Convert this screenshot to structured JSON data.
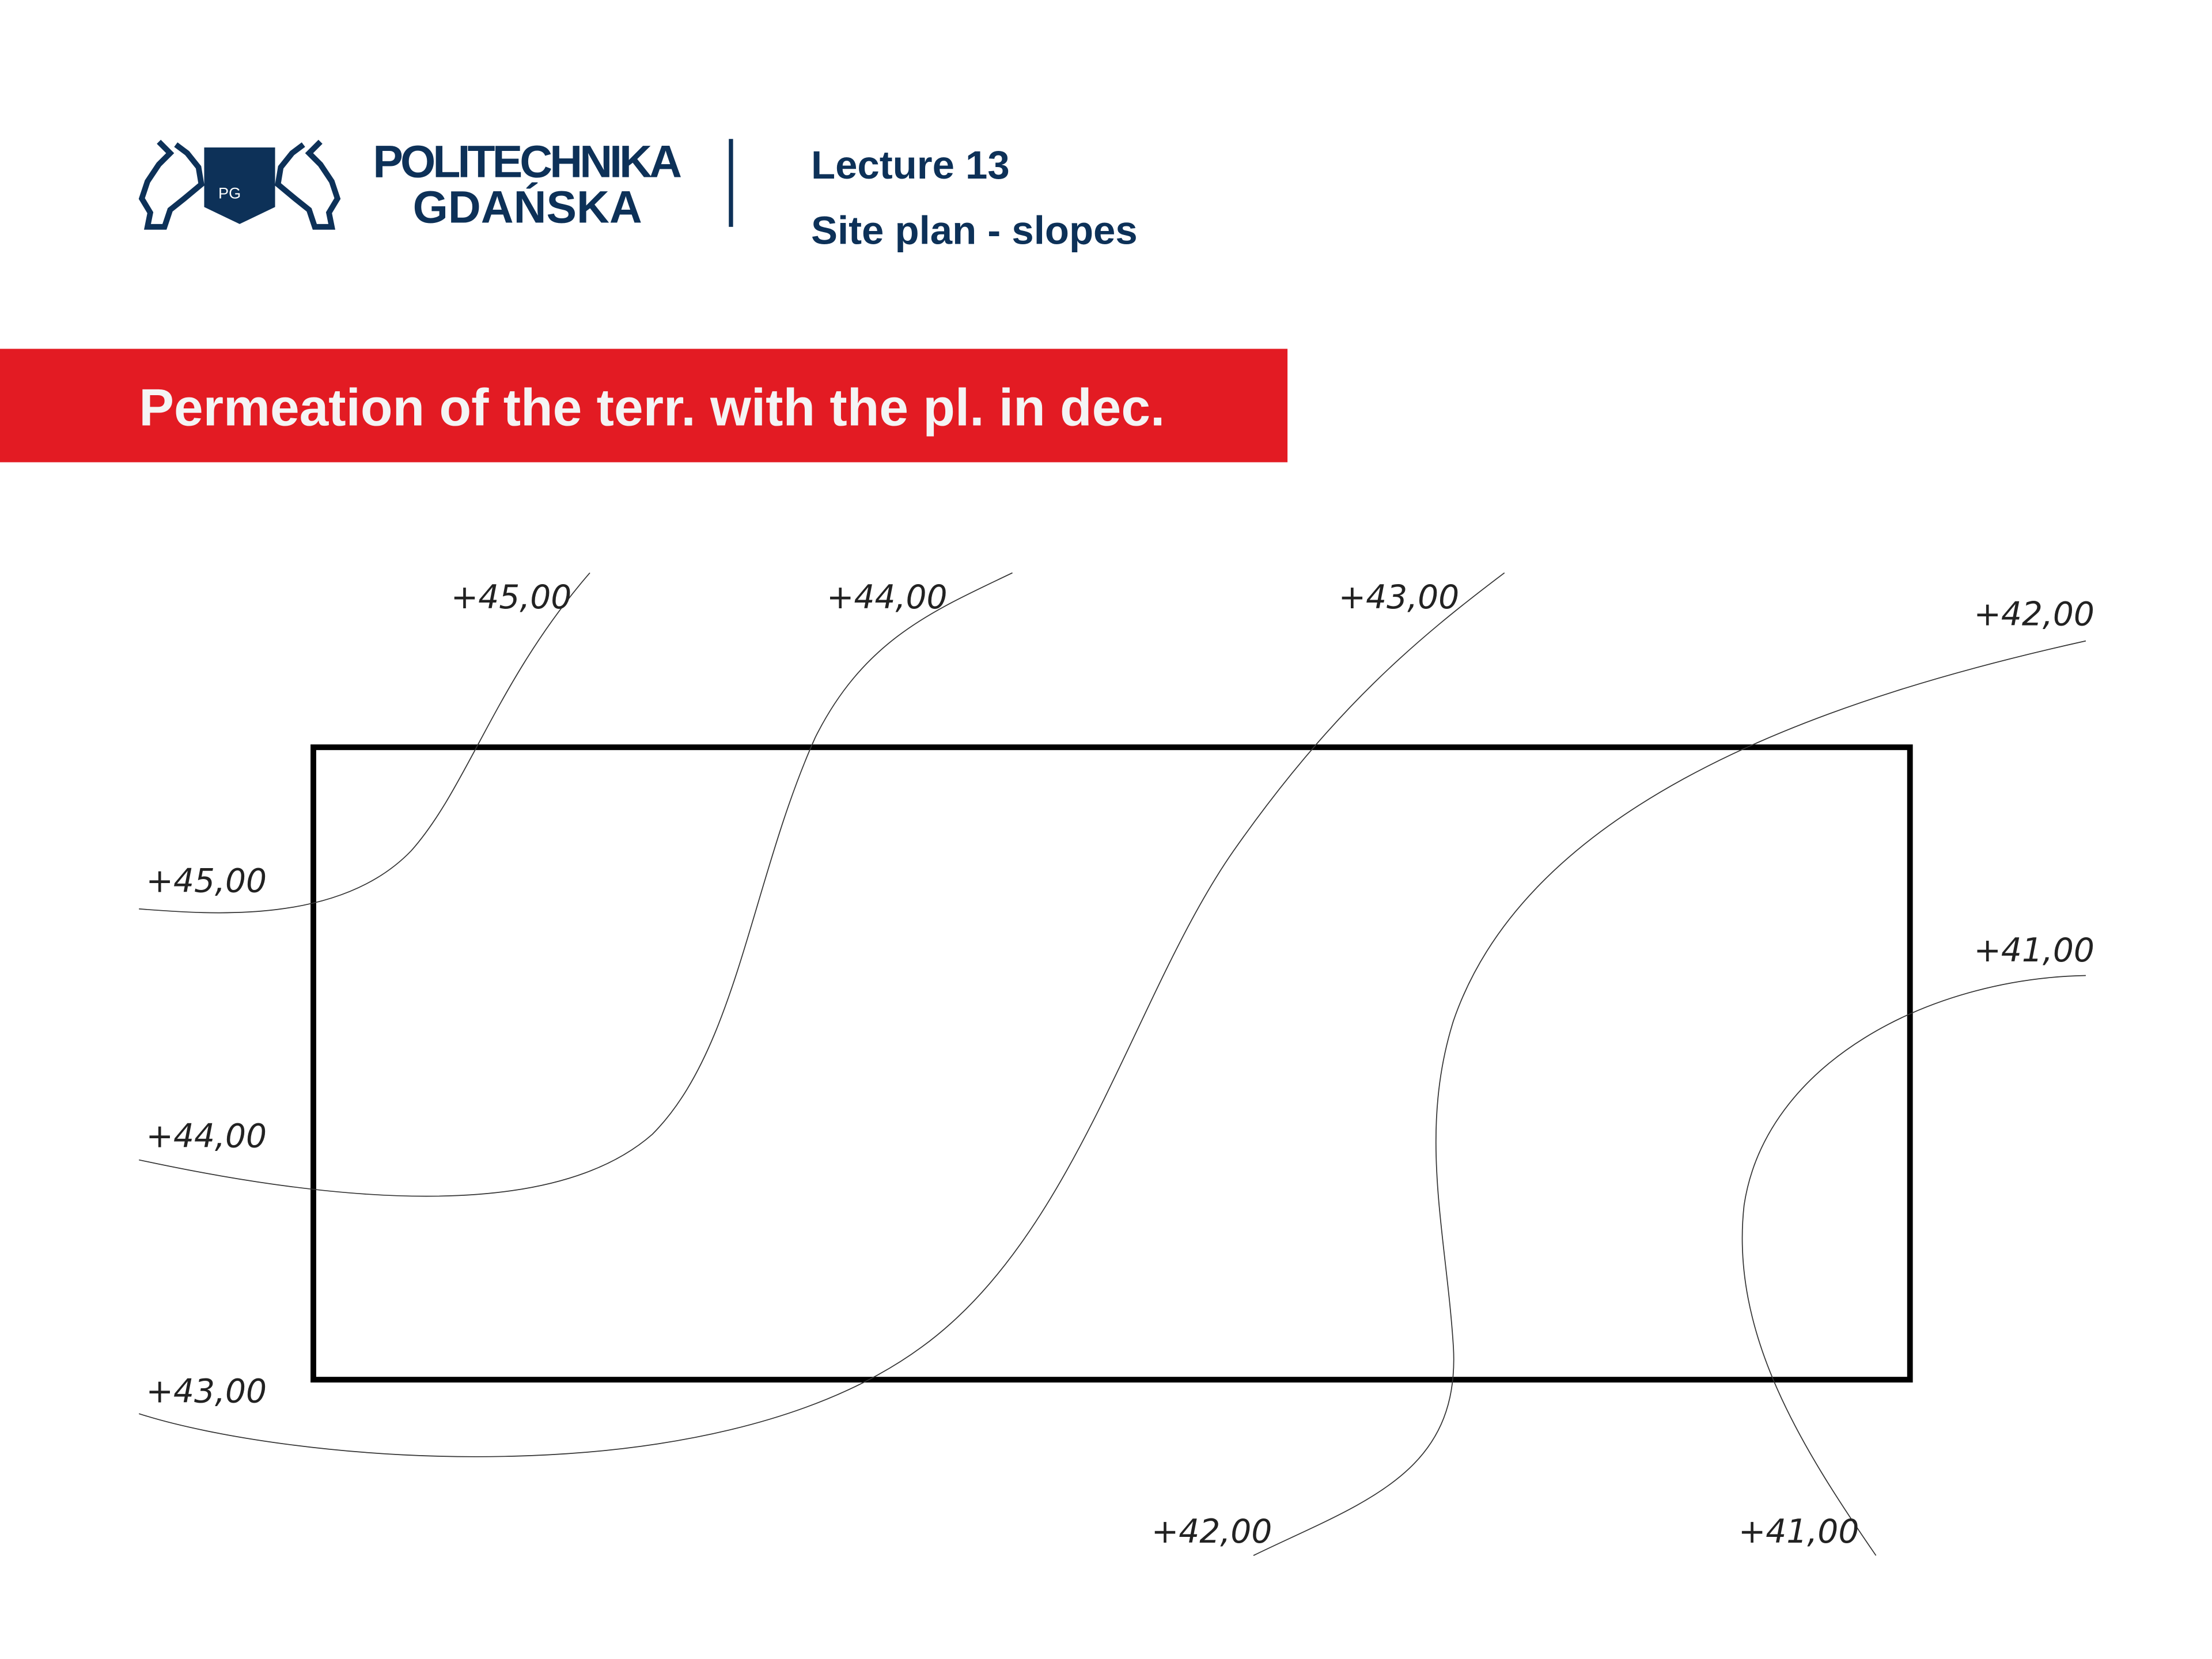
{
  "header": {
    "logo_line1": "POLITECHNIKA",
    "logo_line2": "GDAŃSKA",
    "logo_shield_letters": "PG",
    "lecture": "Lecture 13",
    "subtitle": "Site plan - slopes"
  },
  "banner": {
    "title": "Permeation of the terr. with the pl. in dec.",
    "color": "#e31b23"
  },
  "colors": {
    "brand": "#0d3158",
    "banner": "#e31b23"
  },
  "drawing": {
    "contour_labels": {
      "top_45": "+45,00",
      "top_44": "+44,00",
      "top_43": "+43,00",
      "top_42": "+42,00",
      "left_45": "+45,00",
      "left_44": "+44,00",
      "left_43": "+43,00",
      "right_41": "+41,00",
      "bottom_42": "+42,00",
      "bottom_41": "+41,00"
    }
  }
}
